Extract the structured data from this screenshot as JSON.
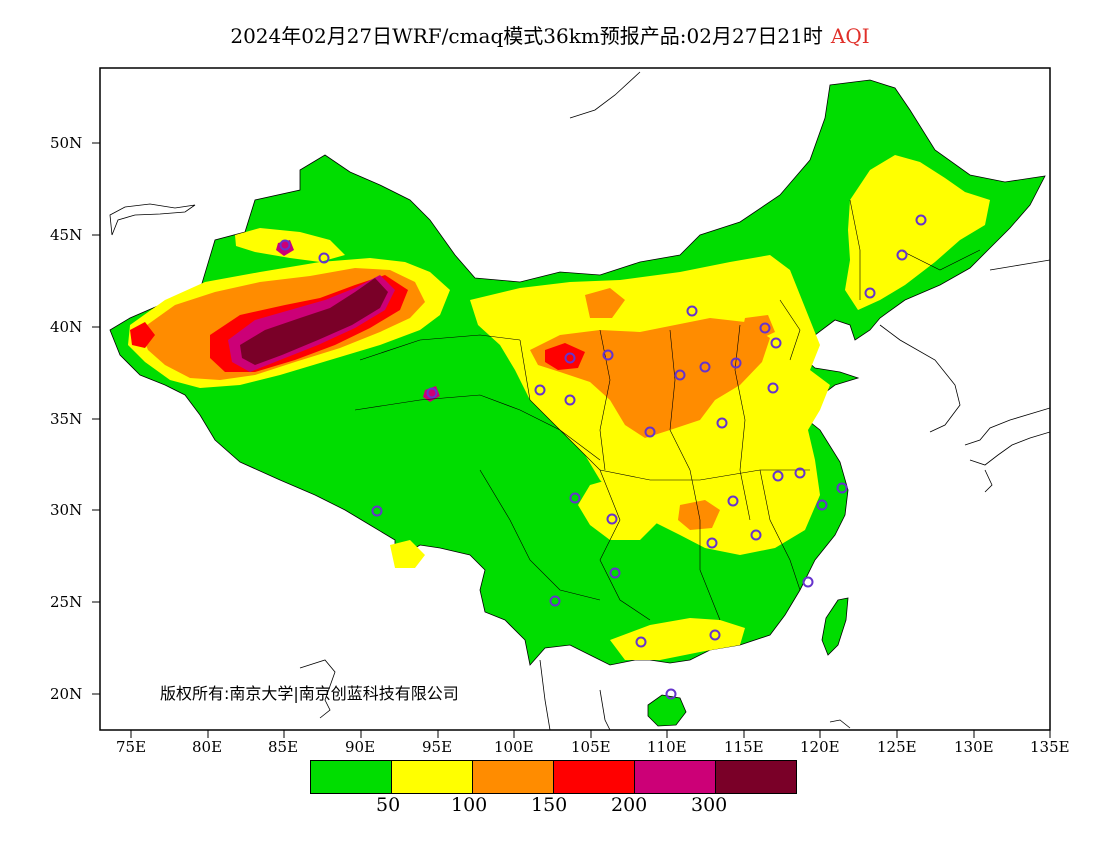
{
  "title": {
    "main": "2024年02月27日WRF/cmaq模式36km预报产品:02月27日21时",
    "variable": "AQI"
  },
  "lat_labels": [
    "50N",
    "45N",
    "40N",
    "35N",
    "30N",
    "25N",
    "20N"
  ],
  "lon_labels": [
    "75E",
    "80E",
    "85E",
    "90E",
    "95E",
    "100E",
    "105E",
    "110E",
    "115E",
    "120E",
    "125E",
    "130E",
    "135E"
  ],
  "copyright": "版权所有:南京大学|南京创蓝科技有限公司",
  "legend": {
    "colors": [
      "#00dd00",
      "#ffff00",
      "#ff8c00",
      "#ff0000",
      "#cc0077",
      "#7a0028"
    ],
    "labels": [
      "50",
      "100",
      "150",
      "200",
      "300"
    ]
  },
  "colors": {
    "good": "#00dd00",
    "moderate": "#ffff00",
    "unhealthy_sensitive": "#ff8c00",
    "unhealthy": "#ff0000",
    "very_unhealthy": "#cc0077",
    "hazardous": "#7a0028",
    "station_marker": "#6633cc"
  }
}
